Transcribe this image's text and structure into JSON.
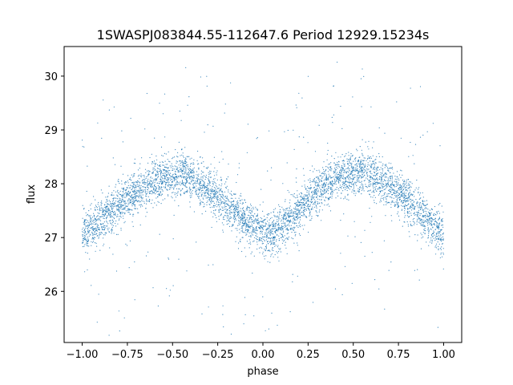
{
  "chart_data": {
    "type": "scatter",
    "title": "1SWASPJ083844.55-112647.6 Period 12929.15234s",
    "xlabel": "phase",
    "ylabel": "flux",
    "xlim": [
      -1.1,
      1.1
    ],
    "ylim": [
      25.05,
      30.55
    ],
    "grid": false,
    "legend": "none",
    "point_color": "#1f77b4",
    "x_ticks": [
      -1.0,
      -0.75,
      -0.5,
      -0.25,
      0.0,
      0.25,
      0.5,
      0.75,
      1.0
    ],
    "x_tick_labels": [
      "−1.00",
      "−0.75",
      "−0.50",
      "−0.25",
      "0.00",
      "0.25",
      "0.50",
      "0.75",
      "1.00"
    ],
    "y_ticks": [
      26,
      27,
      28,
      29,
      30
    ],
    "y_tick_labels": [
      "26",
      "27",
      "28",
      "29",
      "30"
    ],
    "series": [
      {
        "x": [
          -1.0,
          -0.9,
          -0.8,
          -0.7,
          -0.6,
          -0.5,
          -0.45,
          -0.4,
          -0.3,
          -0.2,
          -0.1,
          0.0,
          0.05,
          0.1,
          0.2,
          0.3,
          0.4,
          0.5,
          0.55,
          0.6,
          0.7,
          0.8,
          0.9,
          1.0
        ],
        "y": [
          27.05,
          27.3,
          27.6,
          27.85,
          28.05,
          28.15,
          28.15,
          28.1,
          27.9,
          27.6,
          27.3,
          27.1,
          27.05,
          27.2,
          27.5,
          27.85,
          28.1,
          28.2,
          28.2,
          28.15,
          27.95,
          27.7,
          27.4,
          27.05
        ]
      }
    ]
  }
}
